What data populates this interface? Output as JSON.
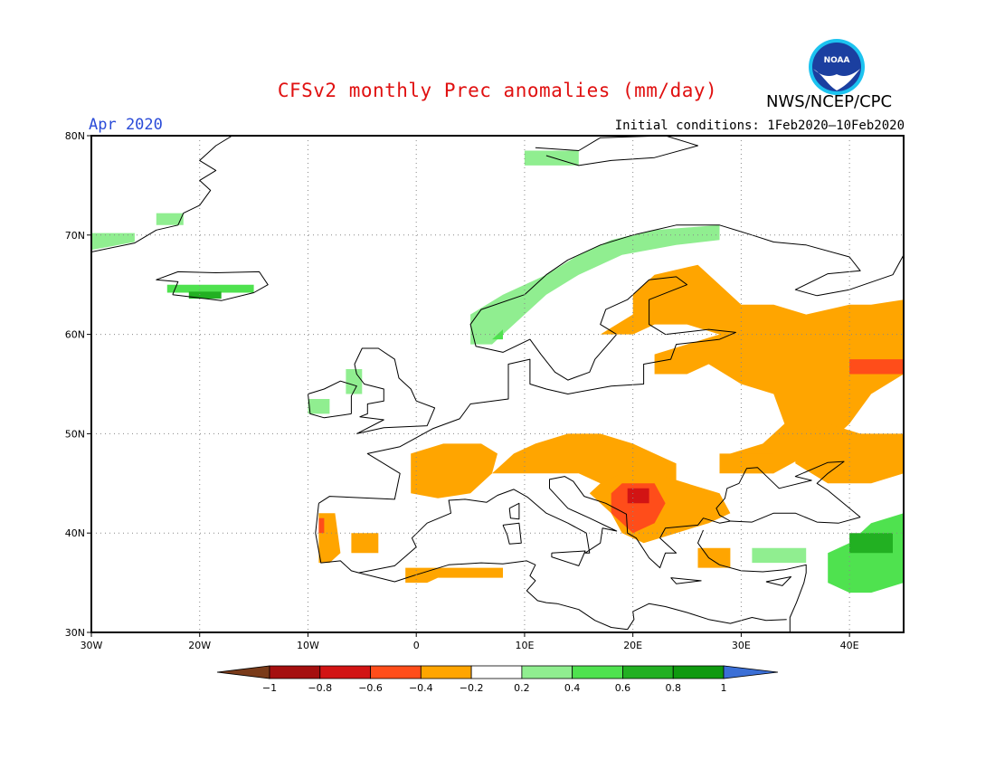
{
  "header": {
    "title": "CFSv2 monthly Prec anomalies (mm/day)",
    "valid_month": "Apr 2020",
    "initial_conditions": "Initial conditions: 1Feb2020–10Feb2020",
    "agency": "NWS/NCEP/CPC",
    "logo_text": "NOAA"
  },
  "map": {
    "projection": "lat-lon",
    "lon_range": [
      -30,
      45
    ],
    "lat_range": [
      30,
      80
    ],
    "lon_ticks": [
      {
        "value": -30,
        "label": "30W"
      },
      {
        "value": -20,
        "label": "20W"
      },
      {
        "value": -10,
        "label": "10W"
      },
      {
        "value": 0,
        "label": "0"
      },
      {
        "value": 10,
        "label": "10E"
      },
      {
        "value": 20,
        "label": "20E"
      },
      {
        "value": 30,
        "label": "30E"
      },
      {
        "value": 40,
        "label": "40E"
      }
    ],
    "lat_ticks": [
      {
        "value": 30,
        "label": "30N"
      },
      {
        "value": 40,
        "label": "40N"
      },
      {
        "value": 50,
        "label": "50N"
      },
      {
        "value": 60,
        "label": "60N"
      },
      {
        "value": 70,
        "label": "70N"
      },
      {
        "value": 80,
        "label": "80N"
      }
    ],
    "anomaly_regions": [
      {
        "name": "Norway west coast",
        "class": "0.2 to 0.4",
        "color": "#90ee90",
        "coords": [
          [
            5,
            59
          ],
          [
            5,
            62
          ],
          [
            8,
            64
          ],
          [
            12,
            66
          ],
          [
            15,
            68
          ],
          [
            18,
            69.5
          ],
          [
            22,
            70.5
          ],
          [
            28,
            71
          ],
          [
            28,
            69.5
          ],
          [
            24,
            69
          ],
          [
            19,
            68
          ],
          [
            15,
            66
          ],
          [
            12,
            64
          ],
          [
            9,
            61
          ],
          [
            7,
            59
          ]
        ]
      },
      {
        "name": "Western Norway",
        "class": "0.4 to 0.6",
        "color": "#4fe24f",
        "coords": [
          [
            7,
            59.5
          ],
          [
            8,
            60.5
          ],
          [
            8,
            59.5
          ]
        ]
      },
      {
        "name": "Greenland coast",
        "class": "0.2 to 0.4",
        "color": "#90ee90",
        "coords": [
          [
            -30,
            68.5
          ],
          [
            -30,
            70.2
          ],
          [
            -26,
            70.2
          ],
          [
            -26,
            69.3
          ]
        ]
      },
      {
        "name": "Greenland east",
        "class": "0.2 to 0.4",
        "color": "#90ee90",
        "coords": [
          [
            -24,
            71
          ],
          [
            -24,
            72.2
          ],
          [
            -21.5,
            72.2
          ],
          [
            -21.5,
            71
          ]
        ]
      },
      {
        "name": "Iceland south",
        "class": "0.4 to 0.6",
        "color": "#4fe24f",
        "coords": [
          [
            -23,
            64.2
          ],
          [
            -23,
            65
          ],
          [
            -15,
            65
          ],
          [
            -15,
            64.2
          ]
        ]
      },
      {
        "name": "Iceland patch",
        "class": "0.6 to 0.8",
        "color": "#22b022",
        "coords": [
          [
            -21,
            63.6
          ],
          [
            -21,
            64.3
          ],
          [
            -18,
            64.3
          ],
          [
            -18,
            63.6
          ]
        ]
      },
      {
        "name": "Svalbard",
        "class": "0.2 to 0.4",
        "color": "#90ee90",
        "coords": [
          [
            10,
            77
          ],
          [
            10,
            78.5
          ],
          [
            15,
            78.5
          ],
          [
            15,
            77
          ]
        ]
      },
      {
        "name": "Scotland west",
        "class": "0.2 to 0.4",
        "color": "#90ee90",
        "coords": [
          [
            -6.5,
            54
          ],
          [
            -6.5,
            56.5
          ],
          [
            -5,
            56.5
          ],
          [
            -5,
            54
          ]
        ]
      },
      {
        "name": "Ireland",
        "class": "0.2 to 0.4",
        "color": "#90ee90",
        "coords": [
          [
            -10,
            52
          ],
          [
            -10,
            53.5
          ],
          [
            -8,
            53.5
          ],
          [
            -8,
            52
          ]
        ]
      },
      {
        "name": "Finland-Russia",
        "class": "-0.4 to -0.2",
        "color": "#ffa500",
        "coords": [
          [
            17,
            60
          ],
          [
            20,
            62
          ],
          [
            20,
            64
          ],
          [
            22,
            66
          ],
          [
            26,
            67
          ],
          [
            28,
            65
          ],
          [
            30,
            63
          ],
          [
            33,
            63
          ],
          [
            36,
            62
          ],
          [
            40,
            63
          ],
          [
            42,
            63
          ],
          [
            45,
            63.5
          ],
          [
            45,
            56
          ],
          [
            42,
            54
          ],
          [
            40,
            51
          ],
          [
            38,
            49
          ],
          [
            33,
            46
          ],
          [
            30,
            46
          ],
          [
            29,
            48
          ],
          [
            32,
            49
          ],
          [
            34,
            51
          ],
          [
            33,
            54
          ],
          [
            30,
            55
          ],
          [
            27,
            57
          ],
          [
            25,
            56
          ],
          [
            22,
            56
          ],
          [
            22,
            58
          ],
          [
            25,
            59
          ],
          [
            28,
            60
          ],
          [
            25,
            61
          ],
          [
            22,
            61
          ],
          [
            20,
            60
          ]
        ]
      },
      {
        "name": "Russia east",
        "class": "-0.4 to -0.2",
        "color": "#ffa500",
        "coords": [
          [
            35,
            47
          ],
          [
            35,
            50
          ],
          [
            38,
            51
          ],
          [
            41,
            50
          ],
          [
            45,
            50
          ],
          [
            45,
            46
          ],
          [
            42,
            45
          ],
          [
            38,
            45
          ]
        ]
      },
      {
        "name": "Volga core",
        "class": "-0.6 to -0.4",
        "color": "#ff4d1a",
        "coords": [
          [
            40,
            56
          ],
          [
            40,
            57.5
          ],
          [
            45,
            57.5
          ],
          [
            45,
            56
          ]
        ]
      },
      {
        "name": "France",
        "class": "-0.4 to -0.2",
        "color": "#ffa500",
        "coords": [
          [
            -0.5,
            44
          ],
          [
            -0.5,
            48
          ],
          [
            2.5,
            49
          ],
          [
            6,
            49
          ],
          [
            7.5,
            48
          ],
          [
            7,
            46
          ],
          [
            5,
            44
          ],
          [
            2,
            43.5
          ]
        ]
      },
      {
        "name": "Alps-Hungary",
        "class": "-0.4 to -0.2",
        "color": "#ffa500",
        "coords": [
          [
            7,
            46
          ],
          [
            9,
            48
          ],
          [
            11,
            49
          ],
          [
            14,
            50
          ],
          [
            17,
            50
          ],
          [
            20,
            49
          ],
          [
            22,
            48
          ],
          [
            24,
            47
          ],
          [
            24,
            45
          ],
          [
            22,
            44
          ],
          [
            19,
            44
          ],
          [
            17,
            45
          ],
          [
            15,
            46
          ],
          [
            12,
            46
          ]
        ]
      },
      {
        "name": "Balkans",
        "class": "-0.4 to -0.2",
        "color": "#ffa500",
        "coords": [
          [
            16,
            44
          ],
          [
            17,
            45
          ],
          [
            19,
            46
          ],
          [
            22,
            46
          ],
          [
            25,
            45
          ],
          [
            28,
            44
          ],
          [
            29,
            42
          ],
          [
            27,
            41
          ],
          [
            24,
            40
          ],
          [
            21,
            39
          ],
          [
            19,
            40
          ],
          [
            18,
            42
          ]
        ]
      },
      {
        "name": "Balkans core",
        "class": "-0.6 to -0.4",
        "color": "#ff4d1a",
        "coords": [
          [
            18,
            42
          ],
          [
            18,
            44
          ],
          [
            19,
            45
          ],
          [
            22,
            45
          ],
          [
            23,
            43
          ],
          [
            22,
            41
          ],
          [
            20,
            40
          ],
          [
            19,
            41
          ]
        ]
      },
      {
        "name": "Serbia deep",
        "class": "-0.8 to -0.6",
        "color": "#d21414",
        "coords": [
          [
            19.5,
            43
          ],
          [
            19.5,
            44.5
          ],
          [
            21.5,
            44.5
          ],
          [
            21.5,
            43
          ]
        ]
      },
      {
        "name": "Portugal",
        "class": "-0.4 to -0.2",
        "color": "#ffa500",
        "coords": [
          [
            -9,
            37
          ],
          [
            -9,
            42
          ],
          [
            -7.5,
            42
          ],
          [
            -7,
            38
          ],
          [
            -8,
            37
          ]
        ]
      },
      {
        "name": "Portugal north",
        "class": "-0.6 to -0.4",
        "color": "#ff4d1a",
        "coords": [
          [
            -9,
            40
          ],
          [
            -9,
            41.5
          ],
          [
            -8.5,
            41.5
          ],
          [
            -8.5,
            40
          ]
        ]
      },
      {
        "name": "Spain south",
        "class": "-0.4 to -0.2",
        "color": "#ffa500",
        "coords": [
          [
            -6,
            38
          ],
          [
            -6,
            40
          ],
          [
            -3.5,
            40
          ],
          [
            -3.5,
            38
          ]
        ]
      },
      {
        "name": "North Africa",
        "class": "-0.4 to -0.2",
        "color": "#ffa500",
        "coords": [
          [
            -1,
            35
          ],
          [
            -1,
            36.5
          ],
          [
            8,
            36.5
          ],
          [
            8,
            35.5
          ],
          [
            2,
            35.5
          ],
          [
            1,
            35
          ]
        ]
      },
      {
        "name": "Turkey-Caucasus",
        "class": "0.4 to 0.6",
        "color": "#4fe24f",
        "coords": [
          [
            38,
            35
          ],
          [
            38,
            38
          ],
          [
            40,
            39
          ],
          [
            42,
            41
          ],
          [
            45,
            42
          ],
          [
            45,
            35
          ],
          [
            42,
            34
          ],
          [
            40,
            34
          ]
        ]
      },
      {
        "name": "Caucasus core",
        "class": "0.6 to 0.8",
        "color": "#22b022",
        "coords": [
          [
            40,
            38
          ],
          [
            40,
            40
          ],
          [
            44,
            40
          ],
          [
            44,
            38
          ]
        ]
      },
      {
        "name": "Turkey south",
        "class": "0.2 to 0.4",
        "color": "#90ee90",
        "coords": [
          [
            31,
            37
          ],
          [
            31,
            38.5
          ],
          [
            36,
            38.5
          ],
          [
            36,
            37
          ]
        ]
      },
      {
        "name": "Greece",
        "class": "-0.4 to -0.2",
        "color": "#ffa500",
        "coords": [
          [
            26,
            36.5
          ],
          [
            26,
            38.5
          ],
          [
            29,
            38.5
          ],
          [
            29,
            36.5
          ]
        ]
      },
      {
        "name": "Ukraine",
        "class": "-0.4 to -0.2",
        "color": "#ffa500",
        "coords": [
          [
            28,
            46
          ],
          [
            28,
            48
          ],
          [
            33,
            48
          ],
          [
            33,
            46
          ]
        ]
      }
    ]
  },
  "colorbar": {
    "ticks": [
      "−1",
      "−0.8",
      "−0.6",
      "−0.4",
      "−0.2",
      "0.2",
      "0.4",
      "0.6",
      "0.8",
      "1"
    ],
    "colors": [
      "#7a3b1a",
      "#a50f0f",
      "#d21414",
      "#ff4d1a",
      "#ffa500",
      "#ffffff",
      "#90ee90",
      "#4fe24f",
      "#22b022",
      "#0f9a0f",
      "#3b6fd6"
    ]
  }
}
